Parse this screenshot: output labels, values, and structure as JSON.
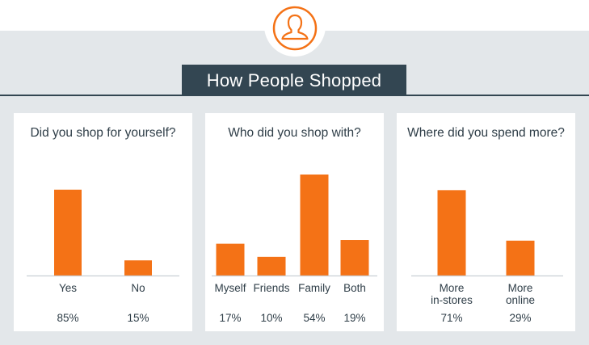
{
  "header": {
    "title": "How People Shopped",
    "icon": "person-silhouette-icon"
  },
  "colors": {
    "bar": "#f47216",
    "banner": "#334652",
    "background": "#e3e7ea",
    "panel": "#ffffff",
    "text": "#2f3e48"
  },
  "chart_data": [
    {
      "type": "bar",
      "title": "Did you shop for yourself?",
      "categories": [
        "Yes",
        "No"
      ],
      "values": [
        85,
        15
      ],
      "value_labels": [
        "85%",
        "15%"
      ],
      "ylim": [
        0,
        100
      ]
    },
    {
      "type": "bar",
      "title": "Who did you shop with?",
      "categories": [
        "Myself",
        "Friends",
        "Family",
        "Both"
      ],
      "values": [
        17,
        10,
        54,
        19
      ],
      "value_labels": [
        "17%",
        "10%",
        "54%",
        "19%"
      ],
      "ylim": [
        0,
        54
      ]
    },
    {
      "type": "bar",
      "title": "Where did you spend more?",
      "categories": [
        "More\nin-stores",
        "More\nonline"
      ],
      "values": [
        71,
        29
      ],
      "value_labels": [
        "71%",
        "29%"
      ],
      "ylim": [
        0,
        84
      ]
    }
  ]
}
